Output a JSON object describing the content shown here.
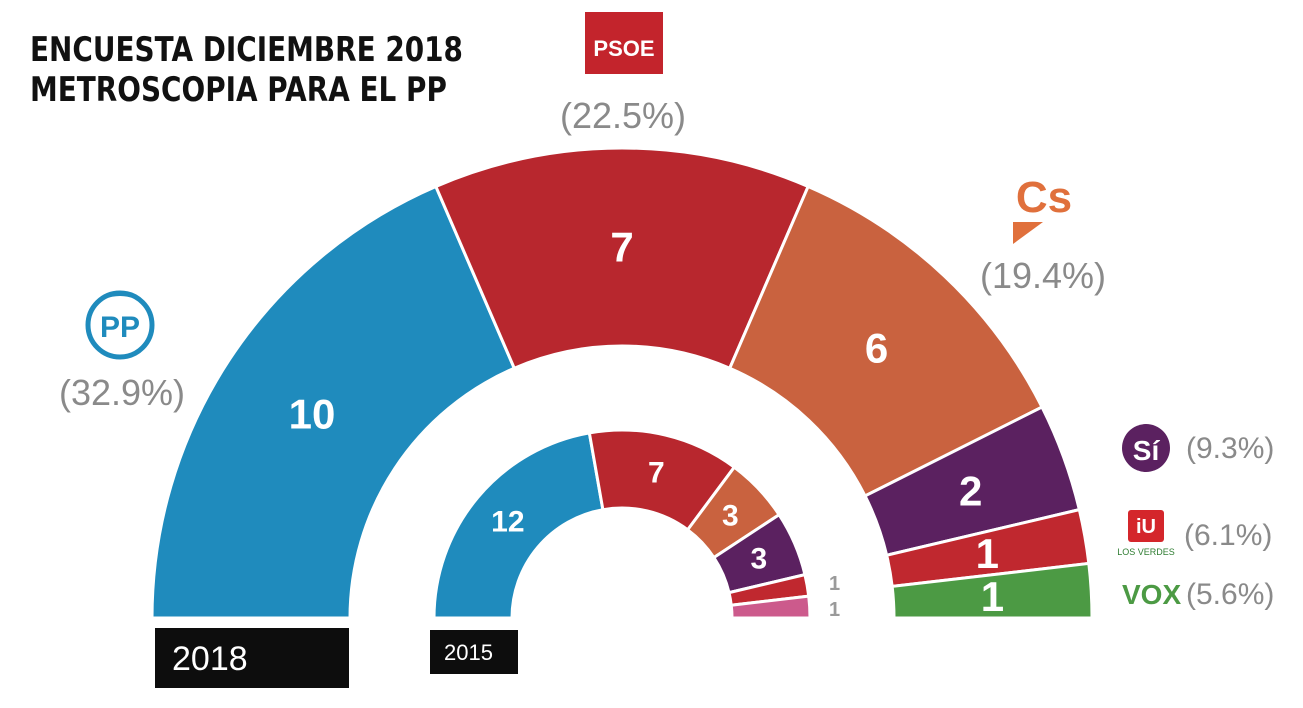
{
  "title_lines": [
    "ENCUESTA DICIEMBRE 2018",
    "METROSCOPIA PARA EL PP"
  ],
  "chart_data": [
    {
      "type": "pie",
      "subtype": "parliament-hemicycle",
      "label": "2018",
      "categories": [
        "PP",
        "PSOE",
        "Cs",
        "Sí",
        "IU",
        "VOX"
      ],
      "values": [
        10,
        7,
        6,
        2,
        1,
        1
      ],
      "vote_share_labels": [
        "(32.9%)",
        "(22.5%)",
        "(19.4%)",
        "(9.3%)",
        "(6.1%)",
        "(5.6%)"
      ],
      "colors": [
        "#1f8bbd",
        "#b8272e",
        "#c9623f",
        "#5b2160",
        "#c0282f",
        "#4c9a44"
      ]
    },
    {
      "type": "pie",
      "subtype": "parliament-hemicycle",
      "label": "2015",
      "values": [
        12,
        7,
        3,
        3,
        1,
        1
      ],
      "colors": [
        "#1f8bbd",
        "#b8272e",
        "#c9623f",
        "#5b2160",
        "#c0282f",
        "#cc5a8c"
      ]
    }
  ],
  "party_logos": {
    "psoe": "PSOE",
    "cs": "Cs",
    "si": "Sí",
    "iu_sub": "LOS VERDES",
    "vox": "VOX"
  },
  "brand_colors": {
    "pp": "#1f8bbd",
    "psoe": "#b8272e",
    "cs": "#c9623f",
    "si": "#5b2160",
    "iu": "#c0282f",
    "vox": "#4c9a44",
    "other_2015": "#cc5a8c"
  }
}
